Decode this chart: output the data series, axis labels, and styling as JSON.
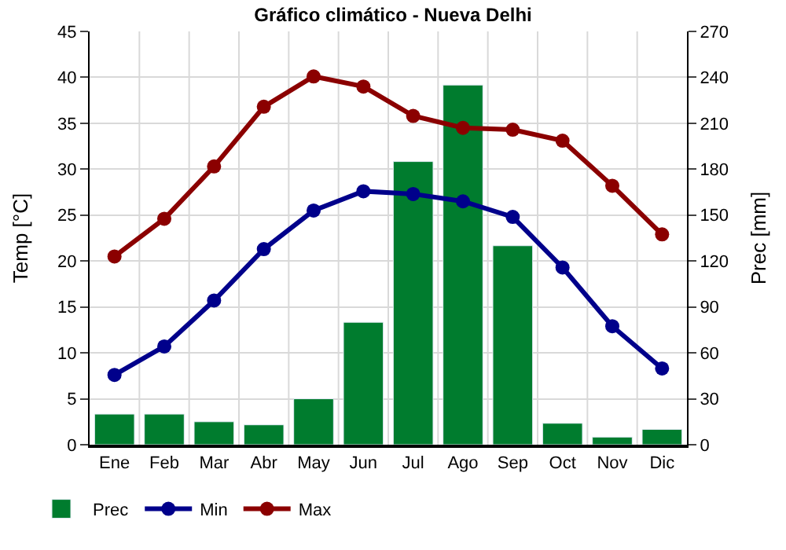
{
  "chart_data": {
    "type": "bar",
    "title": "Gráfico climático - Nueva Delhi",
    "ylabel": "Temp [°C]",
    "y2label": "Prec [mm]",
    "categories": [
      "Ene",
      "Feb",
      "Mar",
      "Abr",
      "May",
      "Jun",
      "Jul",
      "Ago",
      "Sep",
      "Oct",
      "Nov",
      "Dic"
    ],
    "series": [
      {
        "name": "Prec",
        "axis": "y2",
        "color": "#007c2e",
        "values": [
          20,
          20,
          15,
          13,
          30,
          80,
          185,
          235,
          130,
          14,
          5,
          10
        ]
      },
      {
        "name": "Min",
        "type": "line",
        "axis": "y",
        "color": "#00008b",
        "values": [
          7.6,
          10.7,
          15.7,
          21.3,
          25.5,
          27.6,
          27.3,
          26.5,
          24.8,
          19.3,
          12.9,
          8.3
        ]
      },
      {
        "name": "Max",
        "type": "line",
        "axis": "y",
        "color": "#8b0000",
        "values": [
          20.5,
          24.6,
          30.3,
          36.8,
          40.1,
          39.0,
          35.8,
          34.5,
          34.3,
          33.1,
          28.2,
          22.9
        ]
      }
    ],
    "ylim": [
      0,
      45
    ],
    "yticks": [
      0,
      5,
      10,
      15,
      20,
      25,
      30,
      35,
      40,
      45
    ],
    "y2lim": [
      0,
      270
    ],
    "y2ticks": [
      0,
      30,
      60,
      90,
      120,
      150,
      180,
      210,
      240,
      270
    ],
    "grid": true,
    "legend": "bottom",
    "marker": "circle",
    "line_style": "solid"
  }
}
